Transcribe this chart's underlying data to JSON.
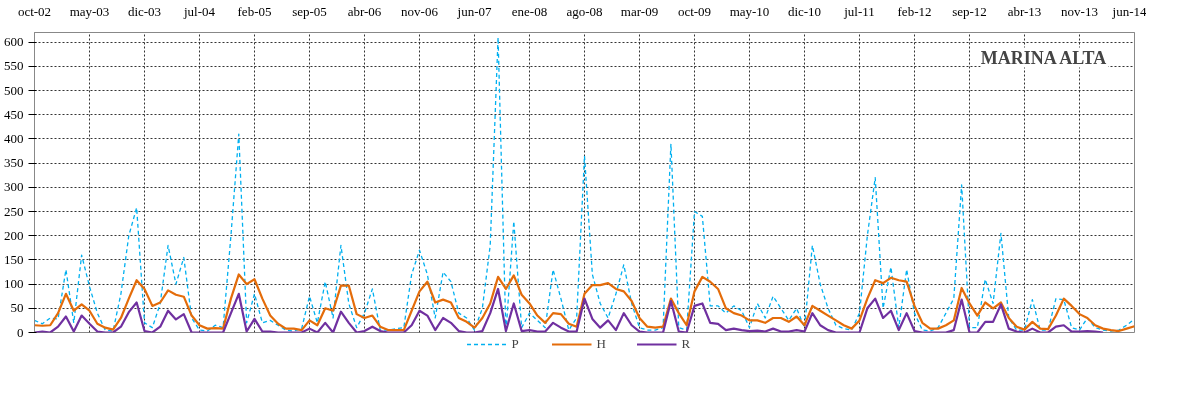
{
  "chart_data": {
    "type": "line",
    "title": "MARINA ALTA",
    "x": [
      "2002-10",
      "2002-11",
      "2002-12",
      "2003-01",
      "2003-02",
      "2003-03",
      "2003-04",
      "2003-05",
      "2003-06",
      "2003-07",
      "2003-08",
      "2003-09",
      "2003-10",
      "2003-11",
      "2003-12",
      "2004-01",
      "2004-02",
      "2004-03",
      "2004-04",
      "2004-05",
      "2004-06",
      "2004-07",
      "2004-08",
      "2004-09",
      "2004-10",
      "2004-11",
      "2004-12",
      "2005-01",
      "2005-02",
      "2005-03",
      "2005-04",
      "2005-05",
      "2005-06",
      "2005-07",
      "2005-08",
      "2005-09",
      "2005-10",
      "2005-11",
      "2005-12",
      "2006-01",
      "2006-02",
      "2006-03",
      "2006-04",
      "2006-05",
      "2006-06",
      "2006-07",
      "2006-08",
      "2006-09",
      "2006-10",
      "2006-11",
      "2006-12",
      "2007-01",
      "2007-02",
      "2007-03",
      "2007-04",
      "2007-05",
      "2007-06",
      "2007-07",
      "2007-08",
      "2007-09",
      "2007-10",
      "2007-11",
      "2007-12",
      "2008-01",
      "2008-02",
      "2008-03",
      "2008-04",
      "2008-05",
      "2008-06",
      "2008-07",
      "2008-08",
      "2008-09",
      "2008-10",
      "2008-11",
      "2008-12",
      "2009-01",
      "2009-02",
      "2009-03",
      "2009-04",
      "2009-05",
      "2009-06",
      "2009-07",
      "2009-08",
      "2009-09",
      "2009-10",
      "2009-11",
      "2009-12",
      "2010-01",
      "2010-02",
      "2010-03",
      "2010-04",
      "2010-05",
      "2010-06",
      "2010-07",
      "2010-08",
      "2010-09",
      "2010-10",
      "2010-11",
      "2010-12",
      "2011-01",
      "2011-02",
      "2011-03",
      "2011-04",
      "2011-05",
      "2011-06",
      "2011-07",
      "2011-08",
      "2011-09",
      "2011-10",
      "2011-11",
      "2011-12",
      "2012-01",
      "2012-02",
      "2012-03",
      "2012-04",
      "2012-05",
      "2012-06",
      "2012-07",
      "2012-08",
      "2012-09",
      "2012-10",
      "2012-11",
      "2012-12",
      "2013-01",
      "2013-02",
      "2013-03",
      "2013-04",
      "2013-05",
      "2013-06",
      "2013-07",
      "2013-08",
      "2013-09",
      "2013-10",
      "2013-11",
      "2013-12",
      "2014-01",
      "2014-02",
      "2014-03",
      "2014-04",
      "2014-05",
      "2014-06"
    ],
    "xlim": [
      "2002-10",
      "2014-06"
    ],
    "xticks": [
      {
        "value": "2002-10",
        "label": "oct-02"
      },
      {
        "value": "2003-05",
        "label": "may-03"
      },
      {
        "value": "2003-12",
        "label": "dic-03"
      },
      {
        "value": "2004-07",
        "label": "jul-04"
      },
      {
        "value": "2005-02",
        "label": "feb-05"
      },
      {
        "value": "2005-09",
        "label": "sep-05"
      },
      {
        "value": "2006-04",
        "label": "abr-06"
      },
      {
        "value": "2006-11",
        "label": "nov-06"
      },
      {
        "value": "2007-06",
        "label": "jun-07"
      },
      {
        "value": "2008-01",
        "label": "ene-08"
      },
      {
        "value": "2008-08",
        "label": "ago-08"
      },
      {
        "value": "2009-03",
        "label": "mar-09"
      },
      {
        "value": "2009-10",
        "label": "oct-09"
      },
      {
        "value": "2010-05",
        "label": "may-10"
      },
      {
        "value": "2010-12",
        "label": "dic-10"
      },
      {
        "value": "2011-07",
        "label": "jul-11"
      },
      {
        "value": "2012-02",
        "label": "feb-12"
      },
      {
        "value": "2012-09",
        "label": "sep-12"
      },
      {
        "value": "2013-04",
        "label": "abr-13"
      },
      {
        "value": "2013-11",
        "label": "nov-13"
      },
      {
        "value": "2014-06",
        "label": "jun-14"
      }
    ],
    "ylim": [
      0,
      620
    ],
    "yticks": [
      0,
      50,
      100,
      150,
      200,
      250,
      300,
      350,
      400,
      450,
      500,
      550,
      600
    ],
    "grid": true,
    "legend": "bottom",
    "series": [
      {
        "name": "P",
        "color": "#00b0f0",
        "line_style": "dashed",
        "values": [
          25,
          18,
          30,
          28,
          130,
          20,
          160,
          95,
          40,
          5,
          3,
          80,
          200,
          258,
          20,
          10,
          60,
          180,
          100,
          155,
          30,
          5,
          3,
          15,
          10,
          200,
          410,
          20,
          80,
          20,
          25,
          15,
          5,
          3,
          8,
          75,
          20,
          105,
          30,
          180,
          60,
          10,
          40,
          90,
          5,
          5,
          8,
          10,
          120,
          170,
          120,
          30,
          125,
          105,
          40,
          30,
          5,
          50,
          180,
          610,
          0,
          230,
          10,
          40,
          25,
          10,
          130,
          70,
          5,
          30,
          365,
          120,
          60,
          30,
          80,
          140,
          60,
          10,
          5,
          5,
          10,
          390,
          10,
          5,
          250,
          240,
          55,
          55,
          40,
          55,
          45,
          10,
          60,
          30,
          75,
          50,
          25,
          50,
          10,
          180,
          100,
          50,
          15,
          8,
          5,
          40,
          200,
          320,
          50,
          135,
          10,
          130,
          40,
          5,
          3,
          10,
          40,
          70,
          305,
          10,
          10,
          110,
          60,
          205,
          30,
          5,
          5,
          68,
          5,
          5,
          70,
          68,
          10,
          5,
          30,
          10,
          5,
          3,
          5,
          15,
          28
        ]
      },
      {
        "name": "H",
        "color": "#e46c0a",
        "line_style": "solid",
        "values": [
          15,
          14,
          15,
          40,
          80,
          45,
          58,
          45,
          18,
          10,
          6,
          30,
          70,
          108,
          90,
          55,
          62,
          87,
          78,
          74,
          35,
          15,
          8,
          9,
          8,
          70,
          120,
          100,
          110,
          70,
          35,
          18,
          8,
          8,
          5,
          25,
          15,
          50,
          45,
          97,
          97,
          38,
          30,
          35,
          12,
          5,
          5,
          5,
          45,
          85,
          105,
          62,
          68,
          62,
          30,
          22,
          10,
          30,
          60,
          115,
          90,
          118,
          78,
          60,
          35,
          20,
          40,
          38,
          18,
          12,
          80,
          98,
          98,
          102,
          90,
          85,
          65,
          30,
          12,
          10,
          12,
          70,
          40,
          15,
          85,
          115,
          105,
          90,
          50,
          40,
          35,
          25,
          25,
          20,
          30,
          30,
          22,
          33,
          15,
          55,
          45,
          35,
          25,
          15,
          8,
          25,
          70,
          108,
          102,
          113,
          108,
          105,
          55,
          20,
          8,
          8,
          15,
          25,
          92,
          60,
          35,
          62,
          50,
          62,
          30,
          12,
          6,
          22,
          8,
          7,
          35,
          70,
          55,
          38,
          30,
          15,
          8,
          5,
          3,
          8,
          13
        ]
      },
      {
        "name": "R",
        "color": "#7030a0",
        "line_style": "solid",
        "values": [
          0,
          2,
          0,
          12,
          33,
          2,
          35,
          18,
          2,
          0,
          0,
          12,
          42,
          62,
          3,
          0,
          12,
          45,
          27,
          38,
          0,
          0,
          0,
          0,
          0,
          40,
          80,
          2,
          28,
          2,
          2,
          0,
          0,
          0,
          0,
          8,
          0,
          20,
          0,
          43,
          20,
          0,
          3,
          12,
          3,
          0,
          0,
          0,
          15,
          45,
          35,
          5,
          30,
          20,
          3,
          0,
          0,
          3,
          40,
          90,
          3,
          60,
          3,
          5,
          2,
          2,
          20,
          10,
          2,
          2,
          70,
          28,
          10,
          25,
          5,
          40,
          15,
          2,
          0,
          0,
          0,
          65,
          2,
          0,
          55,
          60,
          20,
          18,
          5,
          8,
          5,
          3,
          4,
          2,
          8,
          2,
          2,
          5,
          2,
          40,
          15,
          5,
          0,
          0,
          0,
          0,
          50,
          70,
          30,
          45,
          5,
          40,
          3,
          0,
          0,
          0,
          0,
          5,
          68,
          0,
          0,
          22,
          22,
          58,
          8,
          2,
          0,
          8,
          0,
          0,
          12,
          15,
          2,
          2,
          3,
          2,
          0,
          null,
          null,
          null,
          null
        ]
      }
    ]
  }
}
